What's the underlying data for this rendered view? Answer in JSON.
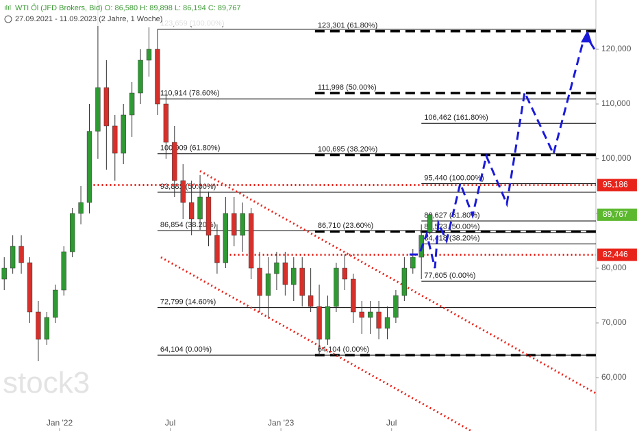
{
  "chart_data": {
    "type": "candlestick",
    "header": {
      "line1": "WTI Öl (JFD Brokers, Bid)   O: 86,580   H: 89,898   L: 86,194   C: 89,767",
      "line2": "27.09.2021 - 11.09.2023   (2 Jahre, 1 Woche)"
    },
    "watermark": "stock3",
    "xlim": [
      0,
      140
    ],
    "ylim": [
      50.25,
      129
    ],
    "xticks": [
      {
        "value": 14,
        "label": "Jan '22"
      },
      {
        "value": 40,
        "label": "Jul"
      },
      {
        "value": 66,
        "label": "Jan '23"
      },
      {
        "value": 92,
        "label": "Jul"
      }
    ],
    "yticks": [
      {
        "value": 60,
        "label": "60,000"
      },
      {
        "value": 70,
        "label": "70,000"
      },
      {
        "value": 80,
        "label": "80,000"
      },
      {
        "value": 90,
        "label": "90,000"
      },
      {
        "value": 100,
        "label": "100,000"
      },
      {
        "value": 110,
        "label": "110,000"
      },
      {
        "value": 120,
        "label": "120,000"
      }
    ],
    "up_color": "#2f9a33",
    "down_color": "#d7302b",
    "x": [
      1,
      3,
      5,
      7,
      9,
      11,
      13,
      15,
      17,
      19,
      21,
      23,
      25,
      27,
      29,
      31,
      33,
      35,
      37,
      39,
      41,
      43,
      45,
      47,
      49,
      51,
      53,
      55,
      57,
      59,
      61,
      63,
      65,
      67,
      69,
      71,
      73,
      75,
      77,
      79,
      81,
      83,
      85,
      87,
      89,
      91,
      93,
      95,
      97,
      99,
      101
    ],
    "open": [
      78,
      80,
      84,
      81,
      72,
      67,
      71,
      76,
      83,
      90,
      92,
      105,
      113,
      106,
      101,
      108,
      112,
      118,
      120,
      110,
      103,
      96,
      92,
      89,
      93,
      86,
      81,
      90,
      86,
      90,
      80,
      75,
      79,
      81,
      77,
      80,
      75,
      73,
      67,
      73,
      80,
      78,
      72,
      71,
      72,
      69,
      71,
      75,
      80,
      82,
      86.58
    ],
    "high": [
      82,
      86,
      86,
      82,
      74,
      72,
      77,
      84,
      91,
      95,
      110,
      129,
      118,
      108,
      110,
      114,
      120,
      124,
      123.66,
      112,
      106,
      99,
      96,
      97,
      94,
      88,
      93,
      93,
      92,
      91,
      83,
      82,
      83,
      83,
      82,
      82,
      80,
      77,
      75,
      81,
      82.5,
      79,
      74,
      74,
      74,
      73,
      76,
      82,
      83.5,
      88,
      89.898
    ],
    "low": [
      76,
      79,
      79,
      70,
      63,
      66,
      70,
      75,
      82,
      88,
      90,
      100,
      98,
      96,
      99,
      104,
      110,
      115,
      108,
      100,
      93,
      89,
      86,
      87,
      84,
      79,
      80,
      84,
      83,
      78,
      72,
      71,
      76,
      75,
      74,
      73,
      72,
      64.1,
      66,
      72,
      76,
      70,
      68,
      68,
      67,
      67,
      70,
      74,
      79,
      78,
      86.194
    ],
    "close": [
      80,
      84,
      81,
      72,
      67,
      71,
      76,
      83,
      90,
      92,
      105,
      113,
      106,
      101,
      108,
      112,
      118,
      120,
      110,
      103,
      96,
      92,
      89,
      93,
      86,
      81,
      90,
      86,
      90,
      80,
      75,
      79,
      81,
      77,
      80,
      75,
      73,
      67,
      73,
      80,
      78,
      72,
      71,
      72,
      69,
      71,
      75,
      80,
      82,
      86,
      89.767
    ],
    "fib_groups": [
      {
        "x0": 37,
        "style": "solid",
        "levels": [
          {
            "value": 123.659,
            "label": "123,659 (100.00%)"
          },
          {
            "value": 110.914,
            "label": "110,914 (78.60%)"
          },
          {
            "value": 100.909,
            "label": "100,909 (61.80%)"
          },
          {
            "value": 93.881,
            "label": "93,881 (50.00%)"
          },
          {
            "value": 86.854,
            "label": "86,854 (38.20%)"
          },
          {
            "value": 72.799,
            "label": "72,799 (14.60%)"
          },
          {
            "value": 64.104,
            "label": "64,104 (0.00%)"
          }
        ]
      },
      {
        "x0": 74,
        "style": "dashed",
        "levels": [
          {
            "value": 123.301,
            "label": "123,301 (61.80%)"
          },
          {
            "value": 111.998,
            "label": "111,998 (50.00%)"
          },
          {
            "value": 100.695,
            "label": "100,695 (38.20%)"
          },
          {
            "value": 86.71,
            "label": "86,710 (23.60%)"
          },
          {
            "value": 64.104,
            "label": "64,104 (0.00%)"
          }
        ]
      },
      {
        "x0": 99,
        "style": "solid",
        "levels": [
          {
            "value": 106.462,
            "label": "106,462 (161.80%)"
          },
          {
            "value": 95.44,
            "label": "95,440 (100.00%)"
          },
          {
            "value": 88.627,
            "label": "88,627 (61.80%)"
          },
          {
            "value": 86.523,
            "label": "86,523 (50.00%)"
          },
          {
            "value": 84.418,
            "label": "84,418 (38.20%)"
          },
          {
            "value": 77.605,
            "label": "77,605 (0.00%)"
          }
        ]
      }
    ],
    "hlines": [
      {
        "x0": 21,
        "value": 95.186,
        "label": "95,186",
        "color": "#e8231a"
      },
      {
        "x0": 54,
        "value": 82.446,
        "label": "82,446",
        "color": "#e8231a"
      }
    ],
    "last_price": {
      "value": 89.767,
      "label": "89,767",
      "color": "#5cb82e"
    }
  }
}
